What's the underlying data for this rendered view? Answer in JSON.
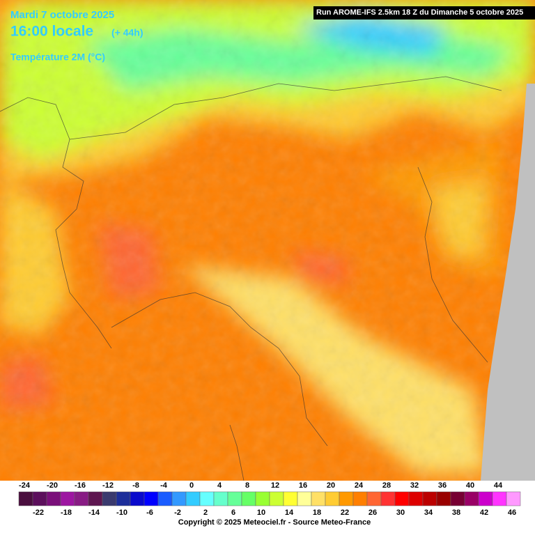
{
  "header": {
    "date": "Mardi 7 octobre 2025",
    "time": "16:00 locale",
    "lead": "(+ 44h)",
    "variable": "Température 2M (°C)",
    "run": "Run AROME-IFS 2.5km 18 Z du Dimanche 5 octobre 2025"
  },
  "legend": {
    "ticks": [
      -24,
      -22,
      -20,
      -18,
      -16,
      -14,
      -12,
      -10,
      -8,
      -6,
      -4,
      -2,
      0,
      2,
      4,
      6,
      8,
      10,
      12,
      14,
      16,
      18,
      20,
      22,
      24,
      26,
      28,
      30,
      32,
      34,
      36,
      38,
      40,
      42,
      44,
      46
    ],
    "colors": [
      "#4a0e3e",
      "#5c0f5c",
      "#7a0f7a",
      "#9d16a1",
      "#881c84",
      "#5e1650",
      "#3a3a6e",
      "#1d2e9a",
      "#0a0acc",
      "#0000ff",
      "#1a5cff",
      "#3399ff",
      "#33ccff",
      "#66ffff",
      "#66ffcc",
      "#66ff99",
      "#66ff66",
      "#99ff33",
      "#ccff33",
      "#ffff33",
      "#ffff99",
      "#ffe066",
      "#ffcc33",
      "#ff9900",
      "#ff7f00",
      "#ff6633",
      "#ff3333",
      "#ff0000",
      "#dd0000",
      "#bb0000",
      "#990000",
      "#770033",
      "#990066",
      "#cc00cc",
      "#ff33ff",
      "#ff99ff"
    ]
  },
  "footer": "Copyright © 2025 Meteociel.fr - Source Meteo-France"
}
